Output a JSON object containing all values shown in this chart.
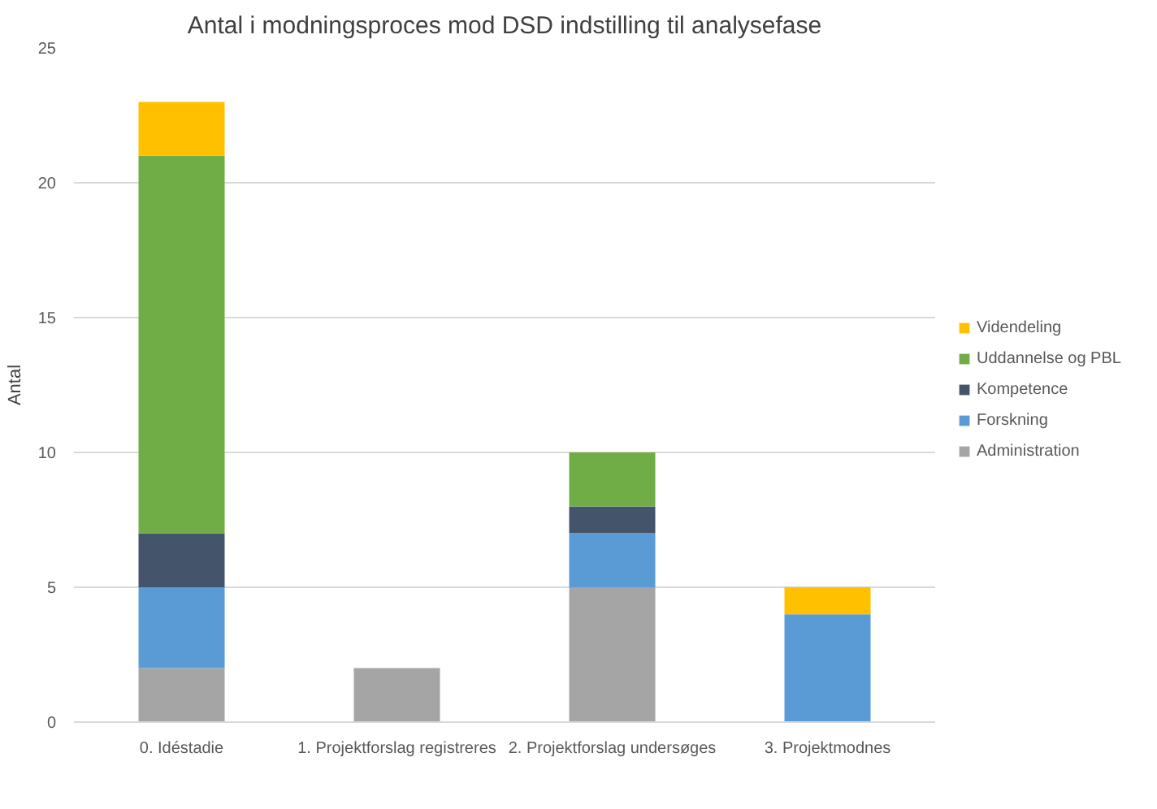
{
  "chart_data": {
    "type": "bar",
    "title": "Antal i modningsproces mod DSD indstilling til analysefase",
    "ylabel": "Antal",
    "categories": [
      "0. Idéstadie",
      "1. Projektforslag registreres",
      "2. Projektforslag undersøges",
      "3. Projektmodnes"
    ],
    "stacked": true,
    "ylim": [
      0,
      25
    ],
    "yticks": [
      0,
      5,
      10,
      15,
      20,
      25
    ],
    "grid": "y",
    "legend": "right",
    "series": [
      {
        "name": "Administration",
        "color": "#a5a5a5",
        "values": [
          2,
          2,
          5,
          0
        ]
      },
      {
        "name": "Forskning",
        "color": "#5b9bd5",
        "values": [
          3,
          0,
          2,
          4
        ]
      },
      {
        "name": "Kompetence",
        "color": "#44546a",
        "values": [
          2,
          0,
          1,
          0
        ]
      },
      {
        "name": "Uddannelse og PBL",
        "color": "#70ad47",
        "values": [
          14,
          0,
          2,
          0
        ]
      },
      {
        "name": "Videndeling",
        "color": "#ffc000",
        "values": [
          2,
          0,
          0,
          1
        ]
      }
    ]
  }
}
